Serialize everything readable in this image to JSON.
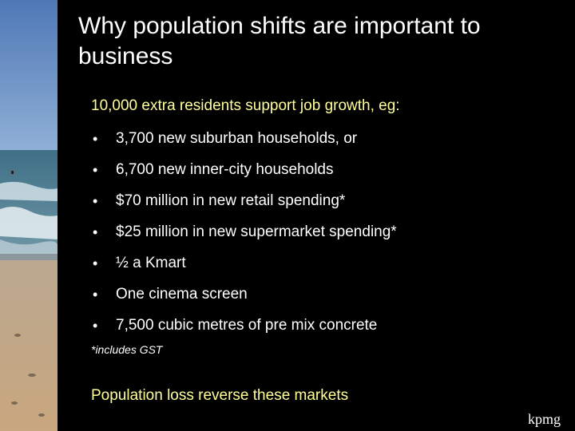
{
  "slide": {
    "title": "Why population shifts are important to business",
    "subtitle": "10,000 extra residents support job growth, eg:",
    "bullets": [
      "3,700 new suburban households, or",
      "6,700 new inner-city households",
      "$70 million in new retail spending*",
      "$25 million in new supermarket spending*",
      "½ a Kmart",
      "One cinema screen",
      "7,500 cubic metres of pre mix concrete"
    ],
    "footnote": "*includes GST",
    "conclusion": "Population loss reverse these markets",
    "logo": "kpmg"
  },
  "colors": {
    "background": "#000000",
    "title": "#ffffff",
    "accent_text": "#ffff99",
    "body_text": "#ffffff"
  },
  "icons": {
    "bullet": "bullet-dot"
  }
}
